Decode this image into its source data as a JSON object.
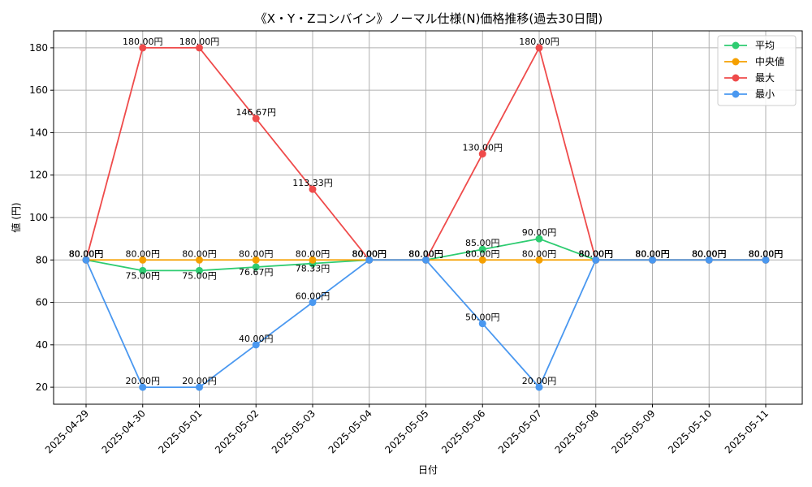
{
  "chart_data": {
    "type": "line",
    "title": "《X・Y・Zコンバイン》ノーマル仕様(N)価格推移(過去30日間)",
    "xlabel": "日付",
    "ylabel": "値 (円)",
    "ylim": [
      12,
      188
    ],
    "yticks": [
      20,
      40,
      60,
      80,
      100,
      120,
      140,
      160,
      180
    ],
    "grid": true,
    "legend_position": "top-right",
    "label_suffix": "円",
    "categories": [
      "2025-04-29",
      "2025-04-30",
      "2025-05-01",
      "2025-05-02",
      "2025-05-03",
      "2025-05-04",
      "2025-05-05",
      "2025-05-06",
      "2025-05-07",
      "2025-05-08",
      "2025-05-09",
      "2025-05-10",
      "2025-05-11"
    ],
    "series": [
      {
        "name": "平均",
        "color": "#2ecc71",
        "values": [
          80,
          75,
          75,
          76.67,
          78.33,
          80,
          80,
          85,
          90,
          80,
          80,
          80,
          80
        ]
      },
      {
        "name": "中央値",
        "color": "#f5a000",
        "values": [
          80,
          80,
          80,
          80,
          80,
          80,
          80,
          80,
          80,
          80,
          80,
          80,
          80
        ]
      },
      {
        "name": "最大",
        "color": "#ef4b4b",
        "values": [
          80,
          180,
          180,
          146.67,
          113.33,
          80,
          80,
          130,
          180,
          80,
          80,
          80,
          80
        ]
      },
      {
        "name": "最小",
        "color": "#4a98f0",
        "values": [
          80,
          20,
          20,
          40,
          60,
          80,
          80,
          50,
          20,
          80,
          80,
          80,
          80
        ]
      }
    ]
  }
}
